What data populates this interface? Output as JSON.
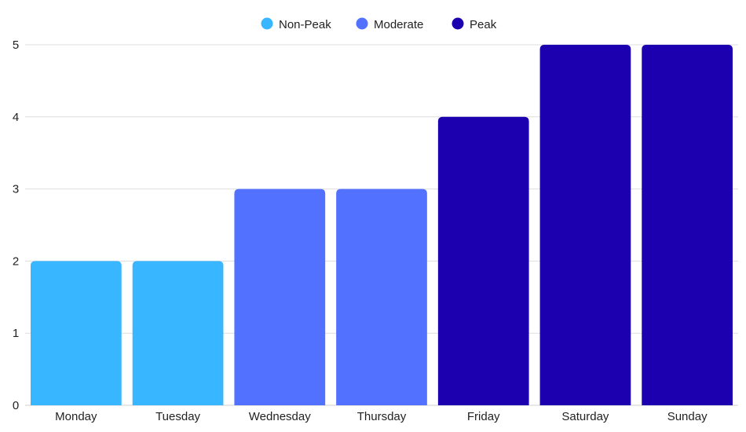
{
  "chart_data": {
    "type": "bar",
    "title": "",
    "xlabel": "",
    "ylabel": "",
    "categories": [
      "Monday",
      "Tuesday",
      "Wednesday",
      "Thursday",
      "Friday",
      "Saturday",
      "Sunday"
    ],
    "values": [
      2,
      2,
      3,
      3,
      4,
      5,
      5
    ],
    "bar_groups": [
      "Non-Peak",
      "Non-Peak",
      "Moderate",
      "Moderate",
      "Peak",
      "Peak",
      "Peak"
    ],
    "ylim": [
      0,
      5
    ],
    "yticks": [
      0,
      1,
      2,
      3,
      4,
      5
    ],
    "grid": true,
    "legend_position": "top-center",
    "legend": [
      {
        "name": "Non-Peak",
        "color": "#38B6FF"
      },
      {
        "name": "Moderate",
        "color": "#5271FF"
      },
      {
        "name": "Peak",
        "color": "#1C00AF"
      }
    ]
  }
}
